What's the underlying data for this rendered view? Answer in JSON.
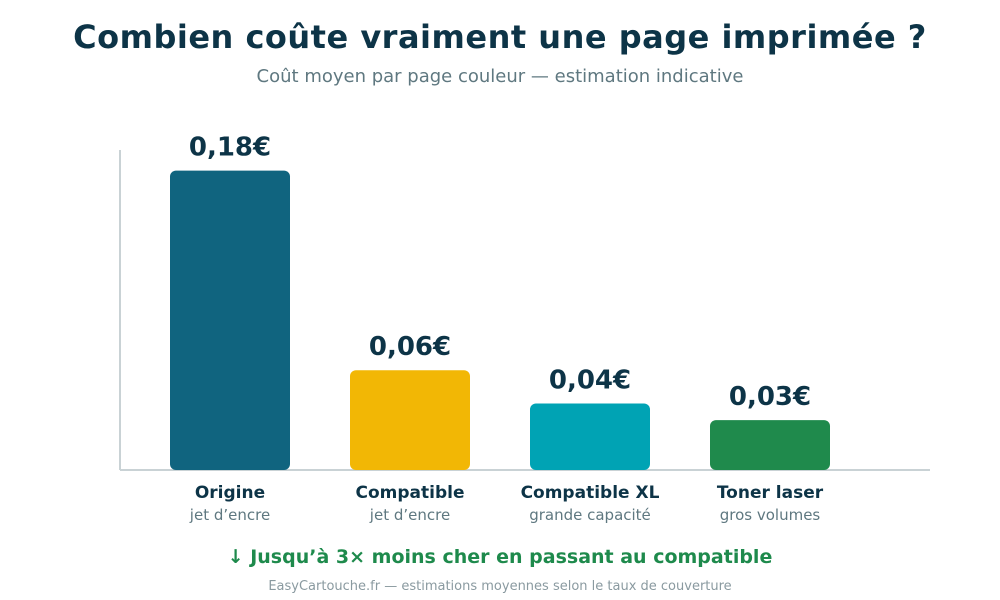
{
  "header": {
    "title": "Combien coûte vraiment une page imprimée ?",
    "subtitle": "Coût moyen par page couleur — estimation indicative"
  },
  "chart_data": {
    "type": "bar",
    "categories": [
      "Origine",
      "Compatible",
      "Compatible XL",
      "Toner laser"
    ],
    "sublabels": [
      "jet d’encre",
      "jet d’encre",
      "grande capacité",
      "gros volumes"
    ],
    "values": [
      0.18,
      0.06,
      0.04,
      0.03
    ],
    "value_labels": [
      "0,18€",
      "0,06€",
      "0,04€",
      "0,03€"
    ],
    "colors": [
      "#10647f",
      "#f2b705",
      "#00a3b4",
      "#1f8a4c"
    ],
    "ylim": [
      0,
      0.19
    ],
    "title": "Combien coûte vraiment une page imprimée ?",
    "xlabel": "",
    "ylabel": "",
    "grid": false,
    "legend": "none"
  },
  "tagline": "↓ Jusqu’à 3× moins cher en passant au compatible",
  "footer": "EasyCartouche.fr — estimations moyennes selon le taux de couverture"
}
